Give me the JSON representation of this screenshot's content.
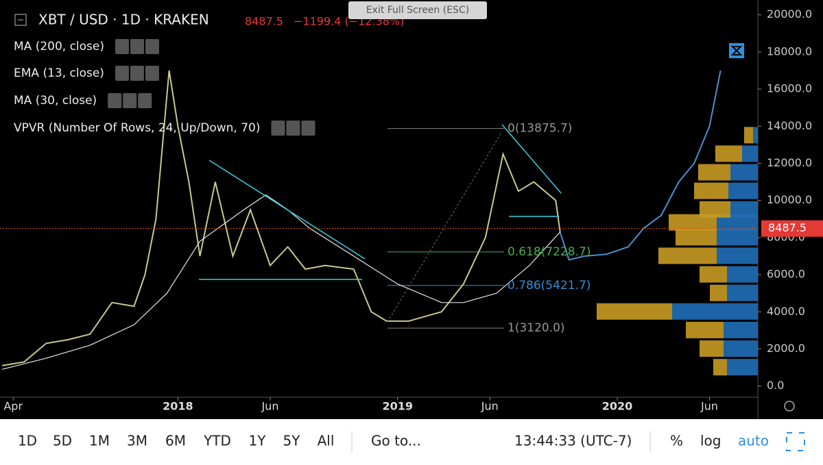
{
  "header": {
    "symbol": "XBT / USD · 1D · KRAKEN",
    "last": 8487.5,
    "change": "−1199.4 (−12.38%)",
    "indicators": [
      "MA (200, close)",
      "EMA (13, close)",
      "MA (30, close)",
      "VPVR (Number Of Rows, 24, Up/Down, 70)"
    ],
    "exit_button": "Exit Full Screen (ESC)"
  },
  "chart_data": {
    "type": "line",
    "xlim": [
      2017.19,
      2020.64
    ],
    "ylim": [
      -600,
      20800
    ],
    "xticks": [
      {
        "value": 2017.25,
        "label": "Apr"
      },
      2018,
      {
        "value": 2018.42,
        "label": "Jun"
      },
      2019,
      {
        "value": 2019.42,
        "label": "Jun"
      },
      2020,
      {
        "value": 2020.42,
        "label": "Jun"
      }
    ],
    "yticks": [
      {
        "value": 0,
        "label": "0.0"
      },
      {
        "value": 2000,
        "label": "2000.0"
      },
      {
        "value": 4000,
        "label": "4000.0"
      },
      {
        "value": 6000,
        "label": "6000.0"
      },
      {
        "value": 8000,
        "label": "8000.0"
      },
      {
        "value": 10000,
        "label": "10000.0"
      },
      {
        "value": 12000,
        "label": "12000.0"
      },
      {
        "value": 14000,
        "label": "14000.0"
      },
      {
        "value": 16000,
        "label": "16000.0"
      },
      {
        "value": 18000,
        "label": "18000.0"
      },
      {
        "value": 20000,
        "label": "20000.0"
      }
    ],
    "series": [
      {
        "color": "#c9c98f",
        "x": [
          2017.2,
          2017.3,
          2017.4,
          2017.5,
          2017.6,
          2017.7,
          2017.8,
          2017.85,
          2017.9,
          2017.96,
          2018.0,
          2018.05,
          2018.1,
          2018.17,
          2018.25,
          2018.33,
          2018.42,
          2018.5,
          2018.58,
          2018.67,
          2018.8,
          2018.88,
          2018.95,
          2019.05,
          2019.2,
          2019.3,
          2019.4,
          2019.48,
          2019.55,
          2019.62,
          2019.72,
          2019.74
        ],
        "values": [
          1100,
          1300,
          2300,
          2500,
          2800,
          4500,
          4300,
          6000,
          9000,
          17000,
          14000,
          11000,
          7000,
          11000,
          7000,
          9500,
          6500,
          7500,
          6300,
          6500,
          6300,
          4000,
          3500,
          3500,
          4000,
          5500,
          8000,
          12500,
          10500,
          11000,
          10000,
          8300
        ]
      },
      {
        "color": "#4a8fd0",
        "x": [
          2019.74,
          2019.78,
          2019.85,
          2019.95,
          2020.05,
          2020.12,
          2020.2,
          2020.28,
          2020.35,
          2020.42,
          2020.47
        ],
        "values": [
          8300,
          6800,
          7000,
          7100,
          7500,
          8500,
          9200,
          11000,
          12000,
          14000,
          17000
        ]
      },
      {
        "color": "#e8e8e8",
        "x": [
          2017.2,
          2017.4,
          2017.6,
          2017.8,
          2017.95,
          2018.1,
          2018.3,
          2018.4,
          2018.5,
          2018.6,
          2018.8,
          2019.0,
          2019.2,
          2019.3,
          2019.45,
          2019.6,
          2019.74
        ],
        "values": [
          900,
          1500,
          2200,
          3300,
          5000,
          7800,
          9500,
          10300,
          9500,
          8500,
          7000,
          5500,
          4500,
          4500,
          5000,
          6500,
          8300
        ]
      }
    ],
    "fib_levels": [
      {
        "value": 13875.7,
        "label": "0(13875.7)"
      },
      {
        "value": 7228.7,
        "label": "0.618(7228.7)"
      },
      {
        "value": 5421.7,
        "label": "0.786(5421.7)"
      },
      {
        "value": 3120.0,
        "label": "1(3120.0)"
      }
    ],
    "vpvr": {
      "levels": [
        1000,
        2000,
        3000,
        4000,
        5000,
        6000,
        7000,
        8000,
        8800,
        9500,
        10500,
        11500,
        12500,
        13500
      ],
      "up": [
        45,
        50,
        50,
        125,
        45,
        45,
        60,
        60,
        60,
        40,
        43,
        40,
        23,
        7
      ],
      "down": [
        20,
        35,
        55,
        110,
        25,
        40,
        85,
        60,
        70,
        45,
        50,
        47,
        39,
        13
      ]
    },
    "last_price_tag": 8487.5
  },
  "toolbar": {
    "ranges": [
      "1D",
      "5D",
      "1M",
      "3M",
      "6M",
      "YTD",
      "1Y",
      "5Y",
      "All"
    ],
    "goto": "Go to...",
    "clock": "13:44:33 (UTC-7)",
    "percent": "%",
    "log": "log",
    "auto": "auto"
  }
}
